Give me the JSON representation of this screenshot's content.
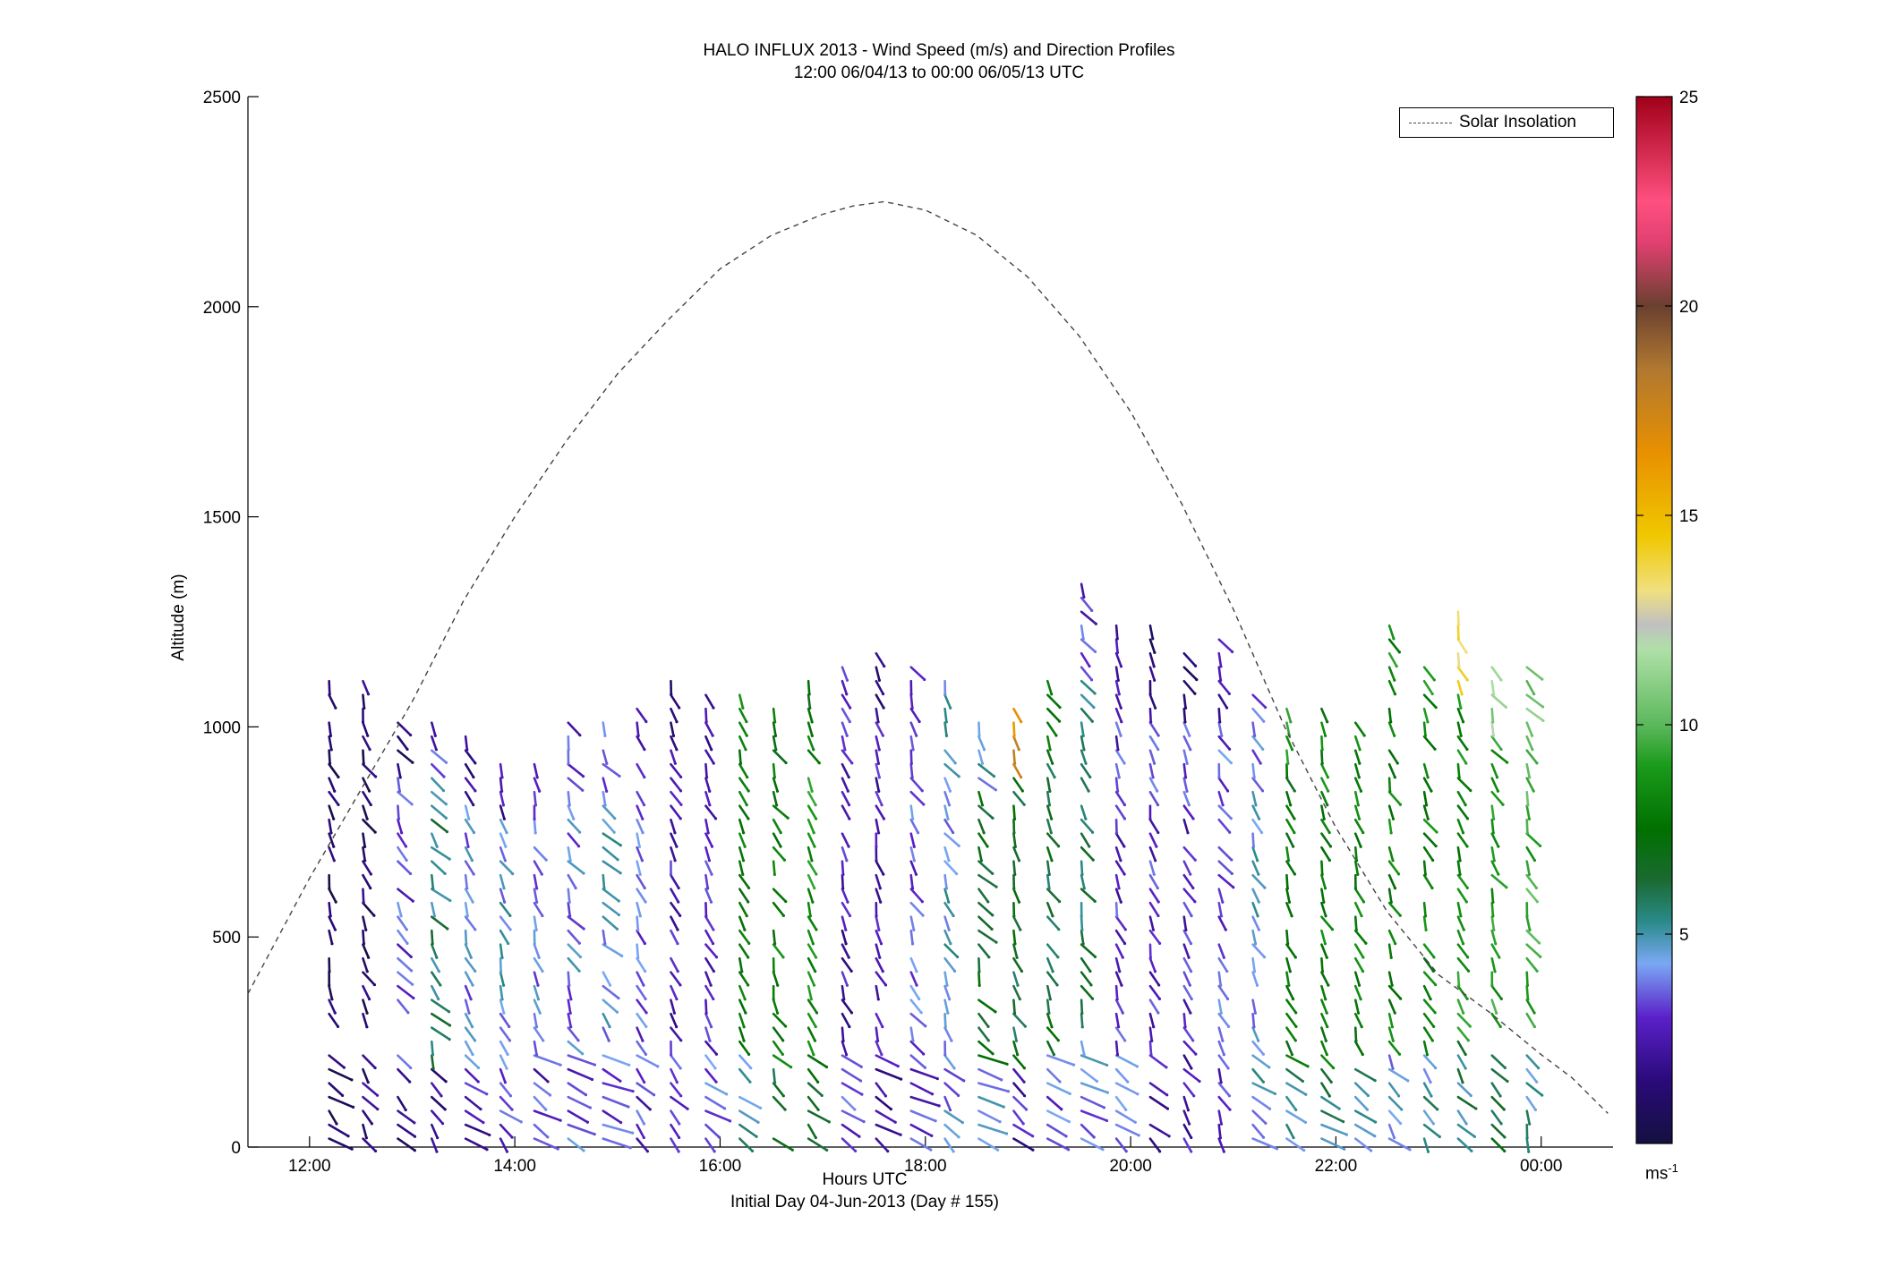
{
  "chart_data": {
    "type": "wind-barb-profile",
    "title": "HALO INFLUX 2013 - Wind Speed (m/s) and Direction Profiles",
    "subtitle": "12:00 06/04/13 to 00:00 06/05/13  UTC",
    "xlabel": "Hours UTC",
    "xlabel2": "Initial Day 04-Jun-2013 (Day # 155)",
    "ylabel": "Altitude (m)",
    "xlim": [
      11.4,
      24.7
    ],
    "ylim": [
      0,
      2500
    ],
    "x_ticks": [
      {
        "value": 12,
        "label": "12:00"
      },
      {
        "value": 14,
        "label": "14:00"
      },
      {
        "value": 16,
        "label": "16:00"
      },
      {
        "value": 18,
        "label": "18:00"
      },
      {
        "value": 20,
        "label": "20:00"
      },
      {
        "value": 22,
        "label": "22:00"
      },
      {
        "value": 24,
        "label": "00:00"
      }
    ],
    "y_ticks": [
      {
        "value": 0,
        "label": "0"
      },
      {
        "value": 500,
        "label": "500"
      },
      {
        "value": 1000,
        "label": "1000"
      },
      {
        "value": 1500,
        "label": "1500"
      },
      {
        "value": 2000,
        "label": "2000"
      },
      {
        "value": 2500,
        "label": "2500"
      }
    ],
    "legend": {
      "entries": [
        "Solar Insolation"
      ],
      "position": "top-right"
    },
    "solar_insolation": {
      "style": "dashed",
      "color": "#444444",
      "x": [
        11.4,
        12.0,
        12.5,
        13.0,
        13.5,
        14.0,
        14.5,
        15.0,
        15.5,
        16.0,
        16.5,
        17.0,
        17.3,
        17.6,
        18.0,
        18.5,
        19.0,
        19.5,
        20.0,
        20.5,
        21.0,
        21.5,
        22.0,
        22.5,
        23.0,
        23.5,
        24.0,
        24.3,
        24.65
      ],
      "y": [
        365,
        640,
        850,
        1060,
        1300,
        1500,
        1680,
        1840,
        1970,
        2090,
        2170,
        2220,
        2240,
        2250,
        2230,
        2170,
        2070,
        1930,
        1750,
        1530,
        1280,
        1000,
        760,
        560,
        410,
        320,
        220,
        165,
        80
      ]
    },
    "colorbar": {
      "label": "ms-1",
      "label_base": "ms",
      "label_sup": "-1",
      "range": [
        0,
        25
      ],
      "ticks": [
        5,
        10,
        15,
        20,
        25
      ],
      "stops": [
        {
          "v": 0,
          "c": "#141040"
        },
        {
          "v": 1.5,
          "c": "#2a0a7a"
        },
        {
          "v": 3,
          "c": "#5a20c8"
        },
        {
          "v": 4.3,
          "c": "#7aa8f5"
        },
        {
          "v": 5.3,
          "c": "#2a8a8a"
        },
        {
          "v": 6.3,
          "c": "#1a6a30"
        },
        {
          "v": 7.5,
          "c": "#007000"
        },
        {
          "v": 9,
          "c": "#1a9a1a"
        },
        {
          "v": 10,
          "c": "#5cb85c"
        },
        {
          "v": 11.8,
          "c": "#b0e0a8"
        },
        {
          "v": 12.4,
          "c": "#c0c0c0"
        },
        {
          "v": 13.2,
          "c": "#f0e080"
        },
        {
          "v": 14.5,
          "c": "#f0c800"
        },
        {
          "v": 16.5,
          "c": "#e89000"
        },
        {
          "v": 18.5,
          "c": "#b07830"
        },
        {
          "v": 20,
          "c": "#6a4030"
        },
        {
          "v": 21.5,
          "c": "#e04070"
        },
        {
          "v": 22.5,
          "c": "#ff5080"
        },
        {
          "v": 25,
          "c": "#a00018"
        }
      ]
    },
    "wind_profiles": {
      "note_fields": [
        "time",
        "top_altitude",
        "speed_low",
        "speed_mid",
        "speed_high",
        "direction_deg"
      ],
      "altitude_step": 33,
      "profiles": [
        {
          "t": 12.33,
          "top": 1120,
          "s": [
            1.0,
            0.8,
            1.2
          ],
          "dir": 270
        },
        {
          "t": 12.66,
          "top": 1130,
          "s": [
            1.5,
            1.0,
            1.2
          ],
          "dir": 265
        },
        {
          "t": 13.0,
          "top": 1040,
          "s": [
            1.5,
            3.5,
            1.5
          ],
          "dir": 260
        },
        {
          "t": 13.33,
          "top": 1040,
          "s": [
            2.0,
            5.5,
            3.0
          ],
          "dir": 255
        },
        {
          "t": 13.66,
          "top": 980,
          "s": [
            2.5,
            4.0,
            2.0
          ],
          "dir": 270
        },
        {
          "t": 14.0,
          "top": 940,
          "s": [
            3.0,
            4.5,
            2.5
          ],
          "dir": 265
        },
        {
          "t": 14.33,
          "top": 940,
          "s": [
            3.0,
            4.0,
            2.5
          ],
          "dir": 275
        },
        {
          "t": 14.66,
          "top": 1040,
          "s": [
            3.5,
            4.0,
            3.0
          ],
          "dir": 280
        },
        {
          "t": 15.0,
          "top": 1020,
          "s": [
            3.5,
            4.5,
            3.5
          ],
          "dir": 285
        },
        {
          "t": 15.33,
          "top": 1070,
          "s": [
            3.0,
            3.5,
            3.0
          ],
          "dir": 270
        },
        {
          "t": 15.66,
          "top": 1130,
          "s": [
            3.5,
            2.5,
            1.5
          ],
          "dir": 268
        },
        {
          "t": 16.0,
          "top": 1100,
          "s": [
            4.0,
            3.0,
            2.0
          ],
          "dir": 272
        },
        {
          "t": 16.33,
          "top": 1100,
          "s": [
            5.0,
            7.5,
            8.0
          ],
          "dir": 270
        },
        {
          "t": 16.66,
          "top": 1070,
          "s": [
            6.5,
            8.0,
            7.5
          ],
          "dir": 262
        },
        {
          "t": 17.0,
          "top": 1170,
          "s": [
            7.0,
            8.5,
            7.5
          ],
          "dir": 268
        },
        {
          "t": 17.33,
          "top": 1160,
          "s": [
            3.5,
            2.5,
            3.0
          ],
          "dir": 270
        },
        {
          "t": 17.66,
          "top": 1200,
          "s": [
            2.5,
            2.5,
            1.8
          ],
          "dir": 272
        },
        {
          "t": 18.0,
          "top": 1150,
          "s": [
            3.0,
            3.5,
            3.5
          ],
          "dir": 280
        },
        {
          "t": 18.33,
          "top": 1110,
          "s": [
            4.0,
            4.5,
            4.5
          ],
          "dir": 262
        },
        {
          "t": 18.66,
          "top": 1030,
          "s": [
            4.5,
            7.0,
            4.5
          ],
          "dir": 285
        },
        {
          "t": 19.0,
          "top": 1070,
          "s": [
            2.5,
            6.5,
            17.0
          ],
          "dir": 265
        },
        {
          "t": 19.33,
          "top": 1140,
          "s": [
            3.5,
            6.5,
            8.0
          ],
          "dir": 275
        },
        {
          "t": 19.66,
          "top": 1340,
          "s": [
            4.0,
            6.0,
            3.0
          ],
          "dir": 278
        },
        {
          "t": 20.0,
          "top": 1260,
          "s": [
            3.5,
            3.0,
            2.0
          ],
          "dir": 272
        },
        {
          "t": 20.33,
          "top": 1260,
          "s": [
            2.5,
            3.0,
            1.5
          ],
          "dir": 270
        },
        {
          "t": 20.66,
          "top": 1200,
          "s": [
            2.5,
            3.0,
            1.5
          ],
          "dir": 265
        },
        {
          "t": 21.0,
          "top": 1210,
          "s": [
            3.0,
            3.5,
            2.5
          ],
          "dir": 260
        },
        {
          "t": 21.33,
          "top": 1080,
          "s": [
            4.5,
            4.5,
            4.0
          ],
          "dir": 275
        },
        {
          "t": 21.66,
          "top": 1070,
          "s": [
            5.0,
            7.5,
            8.5
          ],
          "dir": 270
        },
        {
          "t": 22.0,
          "top": 1070,
          "s": [
            5.5,
            8.0,
            8.0
          ],
          "dir": 272
        },
        {
          "t": 22.33,
          "top": 1020,
          "s": [
            5.0,
            8.0,
            8.0
          ],
          "dir": 268
        },
        {
          "t": 22.66,
          "top": 1250,
          "s": [
            4.5,
            8.0,
            8.5
          ],
          "dir": 265
        },
        {
          "t": 23.0,
          "top": 1170,
          "s": [
            5.0,
            8.0,
            8.5
          ],
          "dir": 262
        },
        {
          "t": 23.33,
          "top": 1300,
          "s": [
            5.5,
            8.5,
            14.0
          ],
          "dir": 265
        },
        {
          "t": 23.66,
          "top": 1170,
          "s": [
            6.5,
            9.0,
            11.0
          ],
          "dir": 260
        },
        {
          "t": 24.0,
          "top": 1150,
          "s": [
            5.0,
            9.5,
            10.5
          ],
          "dir": 258
        }
      ]
    }
  }
}
